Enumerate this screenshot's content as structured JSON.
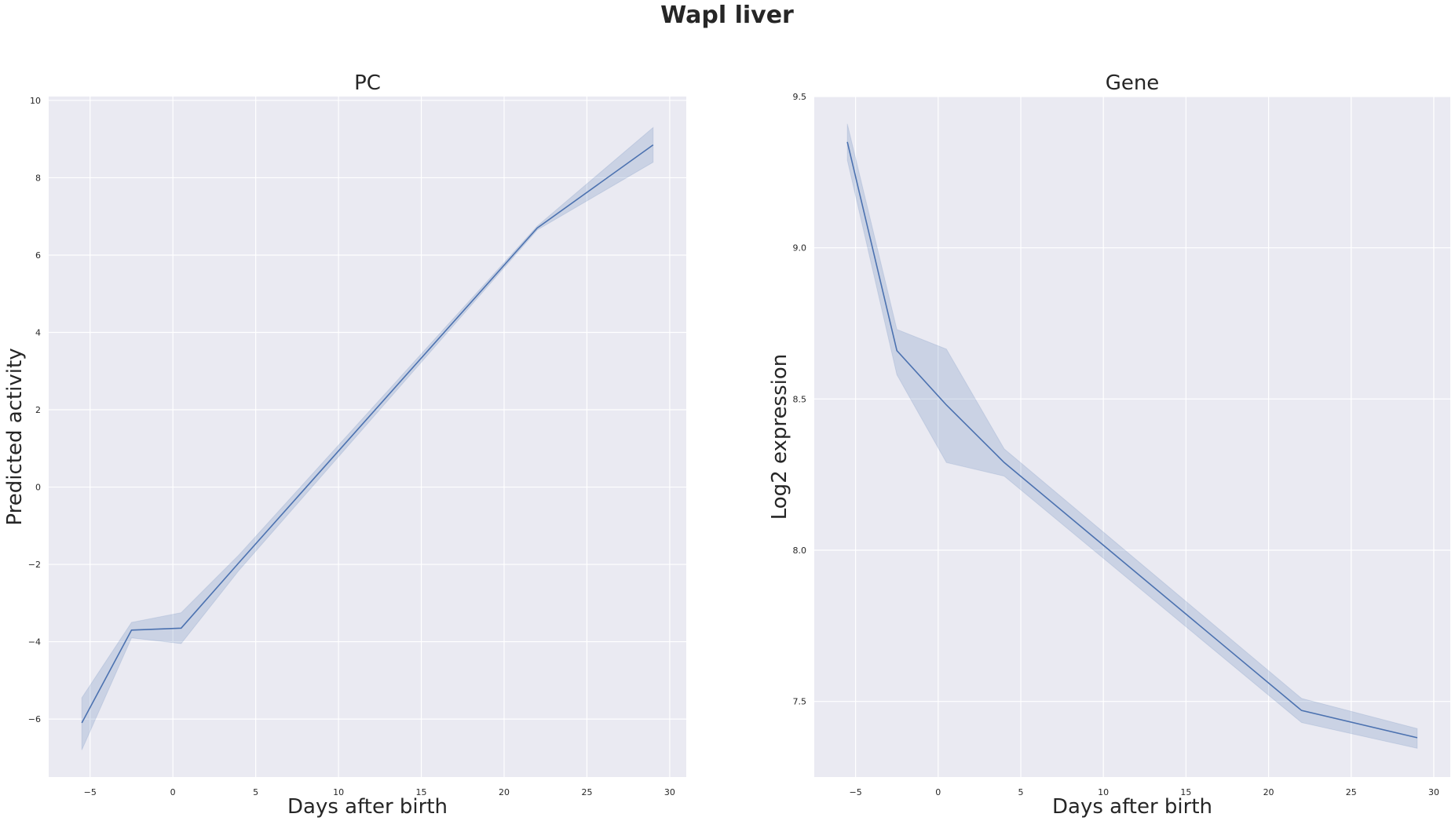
{
  "figure": {
    "title": "Wapl liver"
  },
  "chart_data": [
    {
      "type": "line",
      "title": "PC",
      "xlabel": "Days after birth",
      "ylabel": "Predicted activity",
      "xlim": [
        -7.5,
        31
      ],
      "ylim": [
        -7.5,
        10.1
      ],
      "xticks": [
        -5,
        0,
        5,
        10,
        15,
        20,
        25,
        30
      ],
      "xtick_labels": [
        "−5",
        "0",
        "5",
        "10",
        "15",
        "20",
        "25",
        "30"
      ],
      "yticks": [
        -6,
        -4,
        -2,
        0,
        2,
        4,
        6,
        8,
        10
      ],
      "ytick_labels": [
        "−6",
        "−4",
        "−2",
        "0",
        "2",
        "4",
        "6",
        "8",
        "10"
      ],
      "grid": true,
      "color": "#4c72b0",
      "band_color": "#4c72b0",
      "series": [
        {
          "x": [
            -5.5,
            -2.5,
            0.5,
            4,
            22,
            29
          ],
          "y": [
            -6.1,
            -3.7,
            -3.65,
            -1.95,
            6.7,
            8.85
          ],
          "lower": [
            -6.8,
            -3.9,
            -4.05,
            -2.15,
            6.65,
            8.4
          ],
          "upper": [
            -5.45,
            -3.5,
            -3.25,
            -1.75,
            6.75,
            9.3
          ]
        }
      ]
    },
    {
      "type": "line",
      "title": "Gene",
      "xlabel": "Days after birth",
      "ylabel": "Log2 expression",
      "xlim": [
        -7.5,
        31
      ],
      "ylim": [
        7.25,
        9.5
      ],
      "xticks": [
        -5,
        0,
        5,
        10,
        15,
        20,
        25,
        30
      ],
      "xtick_labels": [
        "−5",
        "0",
        "5",
        "10",
        "15",
        "20",
        "25",
        "30"
      ],
      "yticks": [
        7.5,
        8.0,
        8.5,
        9.0,
        9.5
      ],
      "ytick_labels": [
        "7.5",
        "8.0",
        "8.5",
        "9.0",
        "9.5"
      ],
      "grid": true,
      "color": "#4c72b0",
      "band_color": "#4c72b0",
      "series": [
        {
          "x": [
            -5.5,
            -2.5,
            0.5,
            4,
            22,
            29
          ],
          "y": [
            9.35,
            8.66,
            8.48,
            8.29,
            7.47,
            7.38
          ],
          "lower": [
            9.29,
            8.58,
            8.29,
            8.245,
            7.43,
            7.345
          ],
          "upper": [
            9.41,
            8.73,
            8.665,
            8.335,
            7.51,
            7.41
          ]
        }
      ]
    }
  ]
}
